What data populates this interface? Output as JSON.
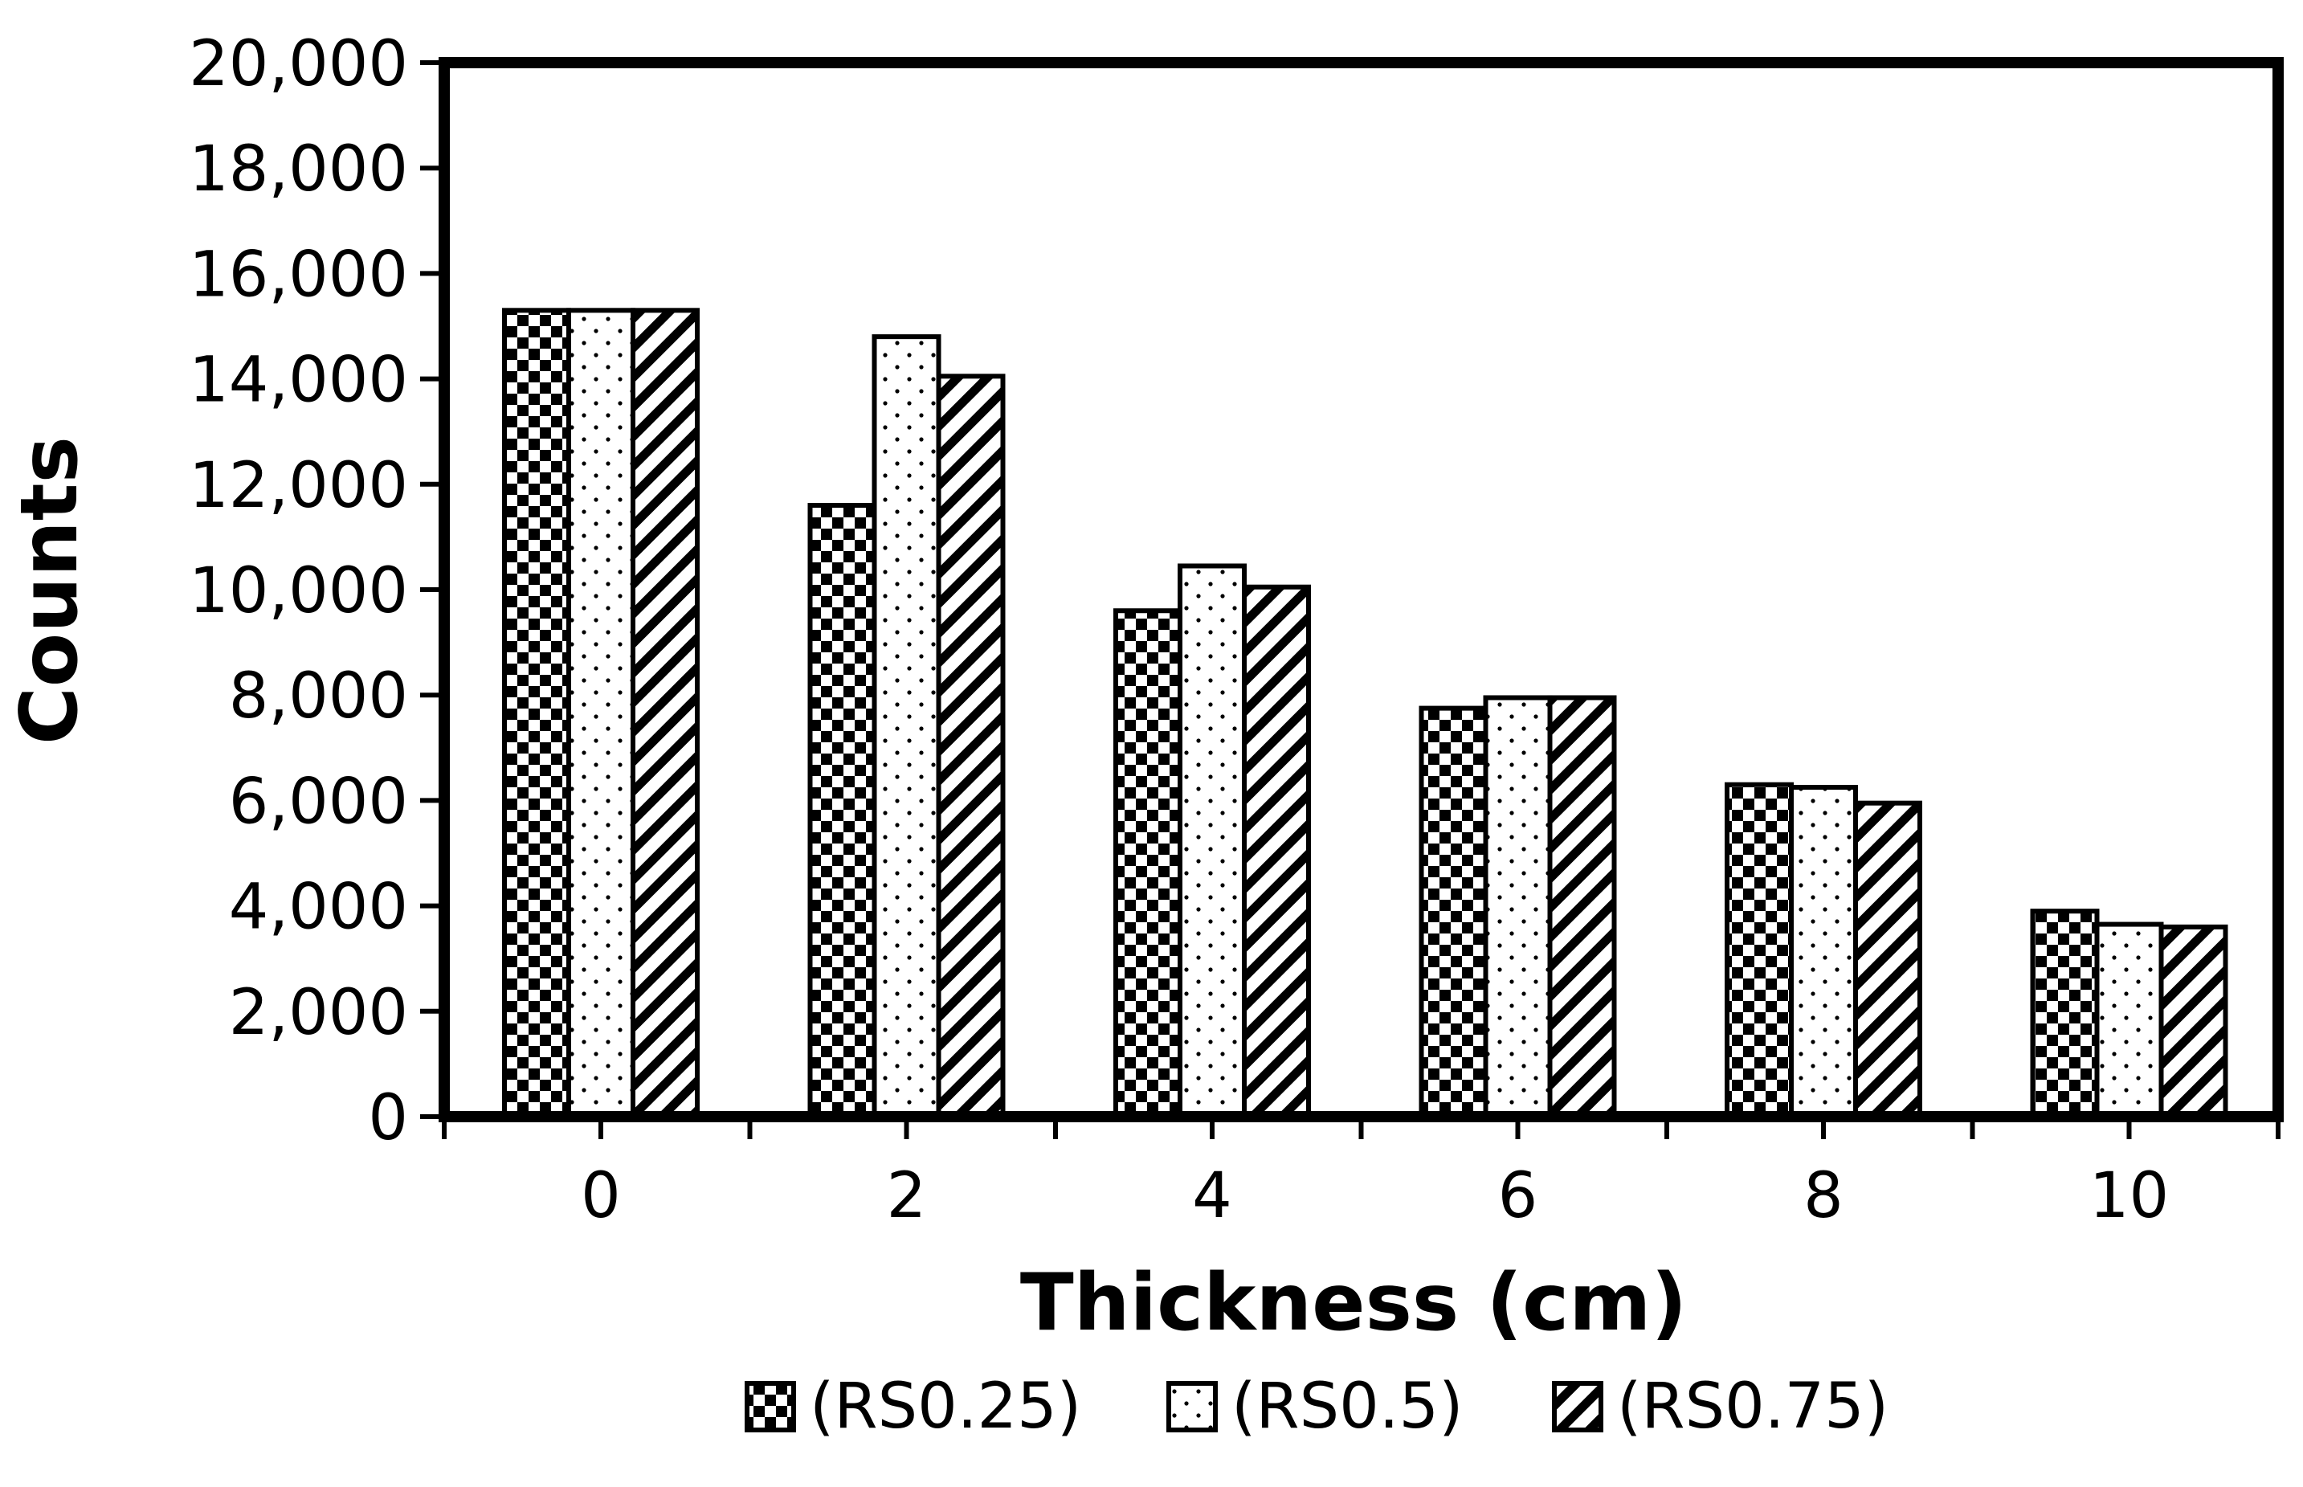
{
  "chart_data": {
    "type": "bar",
    "title": "",
    "xlabel": "Thickness (cm)",
    "ylabel": "Counts",
    "categories": [
      "0",
      "2",
      "4",
      "6",
      "8",
      "10"
    ],
    "series": [
      {
        "name": "(RS0.25)",
        "pattern": "checker",
        "values": [
          15300,
          11600,
          9600,
          7750,
          6300,
          3900
        ]
      },
      {
        "name": "(RS0.5)",
        "pattern": "dots",
        "values": [
          15300,
          14800,
          10450,
          7950,
          6250,
          3650
        ]
      },
      {
        "name": "(RS0.75)",
        "pattern": "hatch",
        "values": [
          15300,
          14050,
          10050,
          7950,
          5950,
          3600
        ]
      }
    ],
    "ylim": [
      0,
      20000
    ],
    "yticks": [
      0,
      2000,
      4000,
      6000,
      8000,
      10000,
      12000,
      14000,
      16000,
      18000,
      20000
    ],
    "ytick_labels": [
      "0",
      "2,000",
      "4,000",
      "6,000",
      "8,000",
      "10,000",
      "12,000",
      "14,000",
      "16,000",
      "18,000",
      "20,000"
    ],
    "grid": false,
    "legend_position": "bottom",
    "colors": {
      "ink": "#000000",
      "paper": "#ffffff"
    }
  }
}
